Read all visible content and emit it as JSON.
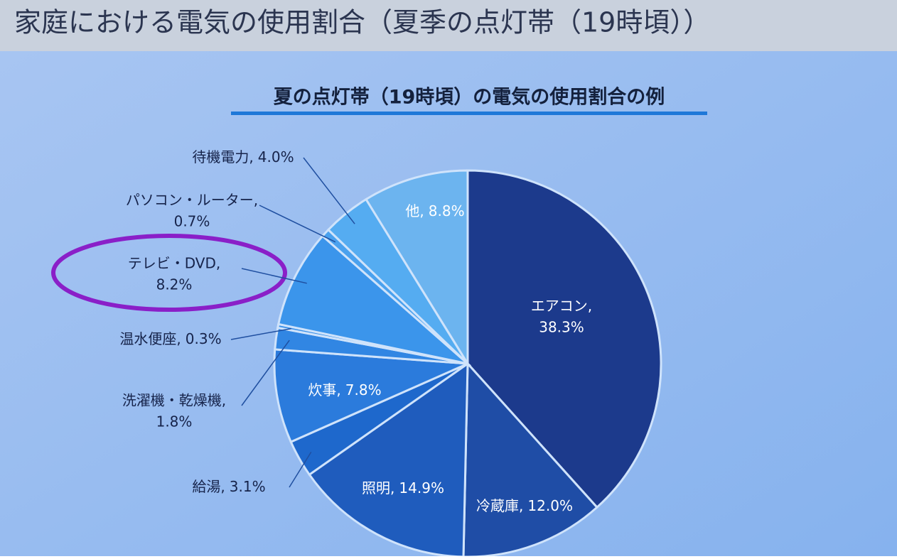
{
  "chart_data": {
    "type": "pie",
    "title": "家庭における電気の使用割合（夏季の点灯帯（19時頃））",
    "subtitle": "夏の点灯帯（19時頃）の電気の使用割合の例",
    "categories": [
      "エアコン,",
      "冷蔵庫,",
      "照明,",
      "給湯,",
      "炊事,",
      "洗濯機・乾燥機,",
      "温水便座,",
      "テレビ・DVD,",
      "パソコン・ルーター,",
      "待機電力,",
      "他,"
    ],
    "values": [
      38.3,
      12.0,
      14.9,
      3.1,
      7.8,
      1.8,
      0.3,
      8.2,
      0.7,
      4.0,
      8.8
    ],
    "value_labels": [
      "38.3%",
      "12.0%",
      "14.9%",
      "3.1%",
      "7.8%",
      "1.8%",
      "0.3%",
      "8.2%",
      "0.7%",
      "4.0%",
      "8.8%"
    ],
    "colors": [
      "#1c3a8c",
      "#1f4da6",
      "#1f5cbd",
      "#1e68cc",
      "#2b7bdc",
      "#3186e3",
      "#3a90e8",
      "#3b95eb",
      "#4aa1ee",
      "#55acf1",
      "#6cb4ef"
    ]
  }
}
